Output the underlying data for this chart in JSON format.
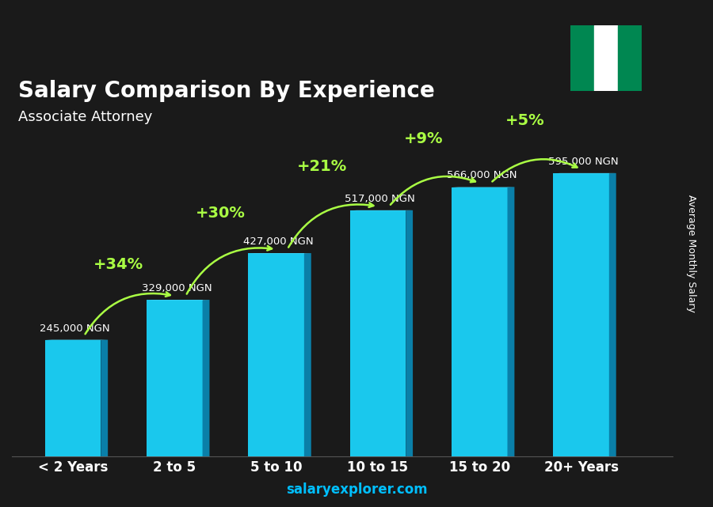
{
  "title": "Salary Comparison By Experience",
  "subtitle": "Associate Attorney",
  "ylabel": "Average Monthly Salary",
  "xlabel": "",
  "watermark": "salaryexplorer.com",
  "categories": [
    "< 2 Years",
    "2 to 5",
    "5 to 10",
    "10 to 15",
    "15 to 20",
    "20+ Years"
  ],
  "values": [
    245000,
    329000,
    427000,
    517000,
    566000,
    595000
  ],
  "labels": [
    "245,000 NGN",
    "329,000 NGN",
    "427,000 NGN",
    "517,000 NGN",
    "566,000 NGN",
    "595,000 NGN"
  ],
  "pct_labels": [
    "+34%",
    "+30%",
    "+21%",
    "+9%",
    "+5%"
  ],
  "bar_color_top": "#00d4ff",
  "bar_color_bottom": "#007acc",
  "bar_color_side": "#005f99",
  "background_color": "#1a1a1a",
  "title_color": "#ffffff",
  "subtitle_color": "#ffffff",
  "label_color": "#ffffff",
  "pct_color": "#aaff44",
  "watermark_color": "#00bfff",
  "ylim": [
    0,
    700000
  ],
  "bar_width": 0.55
}
